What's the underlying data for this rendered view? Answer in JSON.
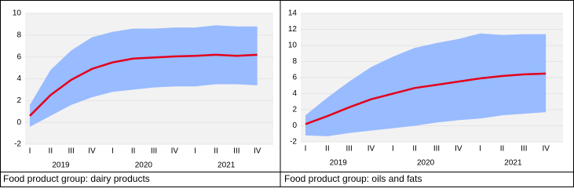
{
  "chart_data": [
    {
      "type": "line",
      "caption": "Food product group: dairy products",
      "categories": [
        "I",
        "II",
        "III",
        "IV",
        "I",
        "II",
        "III",
        "IV",
        "I",
        "II",
        "III",
        "IV"
      ],
      "groups": [
        "2019",
        "2020",
        "2021"
      ],
      "series": [
        {
          "color": "#e3001b",
          "values": [
            0.6,
            2.5,
            3.9,
            4.9,
            5.5,
            5.85,
            5.95,
            6.05,
            6.1,
            6.2,
            6.1,
            6.2
          ]
        }
      ],
      "band_color": "#99bbff",
      "band_upper": [
        1.6,
        4.8,
        6.6,
        7.8,
        8.3,
        8.6,
        8.6,
        8.7,
        8.7,
        8.9,
        8.8,
        8.8
      ],
      "band_lower": [
        -0.4,
        0.6,
        1.6,
        2.3,
        2.8,
        3.0,
        3.2,
        3.3,
        3.3,
        3.5,
        3.5,
        3.4
      ],
      "ylim": [
        -2,
        10
      ],
      "yticks": [
        -2,
        0,
        2,
        4,
        6,
        8,
        10
      ]
    },
    {
      "type": "line",
      "caption": "Food product group: oils and fats",
      "categories": [
        "I",
        "II",
        "III",
        "IV",
        "I",
        "II",
        "III",
        "IV",
        "I",
        "II",
        "III",
        "IV"
      ],
      "groups": [
        "2019",
        "2020",
        "2021"
      ],
      "series": [
        {
          "color": "#e3001b",
          "values": [
            0.2,
            1.2,
            2.3,
            3.3,
            4.0,
            4.7,
            5.1,
            5.5,
            5.9,
            6.2,
            6.4,
            6.5
          ]
        }
      ],
      "band_color": "#99bbff",
      "band_upper": [
        1.3,
        3.5,
        5.5,
        7.3,
        8.6,
        9.7,
        10.3,
        10.8,
        11.5,
        11.3,
        11.4,
        11.4
      ],
      "band_lower": [
        -1.2,
        -1.3,
        -0.9,
        -0.6,
        -0.3,
        0.0,
        0.4,
        0.7,
        0.9,
        1.3,
        1.5,
        1.7
      ],
      "ylim": [
        -2,
        14
      ],
      "yticks": [
        -2,
        0,
        2,
        4,
        6,
        8,
        10,
        12,
        14
      ]
    }
  ]
}
